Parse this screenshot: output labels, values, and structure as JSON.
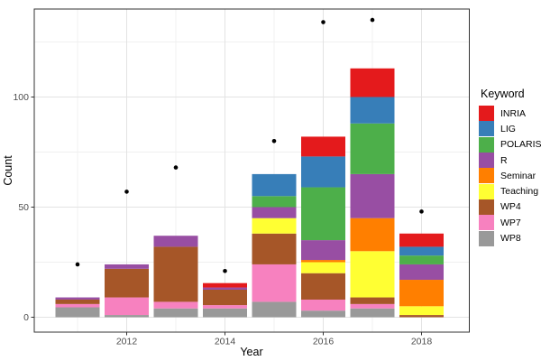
{
  "chart_data": {
    "type": "bar",
    "subtype": "stacked-bars-with-scatter-points",
    "title": "",
    "xlabel": "Year",
    "ylabel": "Count",
    "legend_title": "Keyword",
    "legend_position": "right",
    "grid": true,
    "categories": [
      2011,
      2012,
      2013,
      2014,
      2015,
      2016,
      2017,
      2018
    ],
    "series": [
      {
        "name": "INRIA",
        "color": "#e41a1c",
        "values": [
          0,
          0,
          0,
          2,
          0,
          9,
          13,
          6
        ]
      },
      {
        "name": "LIG",
        "color": "#377eb8",
        "values": [
          0,
          0,
          0,
          0,
          10,
          14,
          12,
          4
        ]
      },
      {
        "name": "POLARIS",
        "color": "#4daf4a",
        "values": [
          0,
          0,
          0,
          0,
          5,
          24,
          23,
          4
        ]
      },
      {
        "name": "R",
        "color": "#984ea3",
        "values": [
          1,
          2,
          5,
          1,
          5,
          9,
          20,
          7
        ]
      },
      {
        "name": "Seminar",
        "color": "#ff7f00",
        "values": [
          0,
          0,
          0,
          0,
          0,
          1,
          15,
          12
        ]
      },
      {
        "name": "Teaching",
        "color": "#ffff33",
        "values": [
          0,
          0,
          0,
          0,
          7,
          5,
          21,
          4
        ]
      },
      {
        "name": "WP4",
        "color": "#a65628",
        "values": [
          2,
          13,
          25,
          7,
          14,
          12,
          3,
          1
        ]
      },
      {
        "name": "WP7",
        "color": "#f781bf",
        "values": [
          1.5,
          8,
          3,
          1.5,
          17,
          5,
          2,
          0
        ]
      },
      {
        "name": "WP8",
        "color": "#999999",
        "values": [
          4.5,
          1,
          4,
          4,
          7,
          3,
          4,
          0
        ]
      }
    ],
    "stack_order": "last-series-at-bottom",
    "bar_totals": [
      9,
      24,
      37,
      15.5,
      65,
      82,
      113,
      38
    ],
    "points": {
      "name": "yearly-count-points",
      "color": "#000000",
      "values": [
        24,
        57,
        68,
        21,
        80,
        134,
        135,
        48
      ]
    },
    "x_major_ticks": [
      "2012",
      "2014",
      "2016",
      "2018"
    ],
    "x_major_tick_years": [
      2012,
      2014,
      2016,
      2018
    ],
    "x_minor_gridline_years": [
      2011,
      2013,
      2015,
      2017
    ],
    "y_major_ticks": [
      "0",
      "50",
      "100"
    ],
    "y_major_tick_values": [
      0,
      50,
      100
    ],
    "y_minor_gridline_values": [
      25,
      75,
      125
    ],
    "ylim": [
      0,
      140
    ],
    "xlim": [
      2010.1,
      2019.0
    ],
    "theme": {
      "panel_background": "#ffffff",
      "panel_border": "#333333",
      "grid_major": "#e3e3e3",
      "grid_minor": "#f0f0f0",
      "tick_color": "#333333",
      "tick_text_color": "#4d4d4d",
      "axis_title_color": "#000000",
      "point_color": "#000000"
    }
  }
}
